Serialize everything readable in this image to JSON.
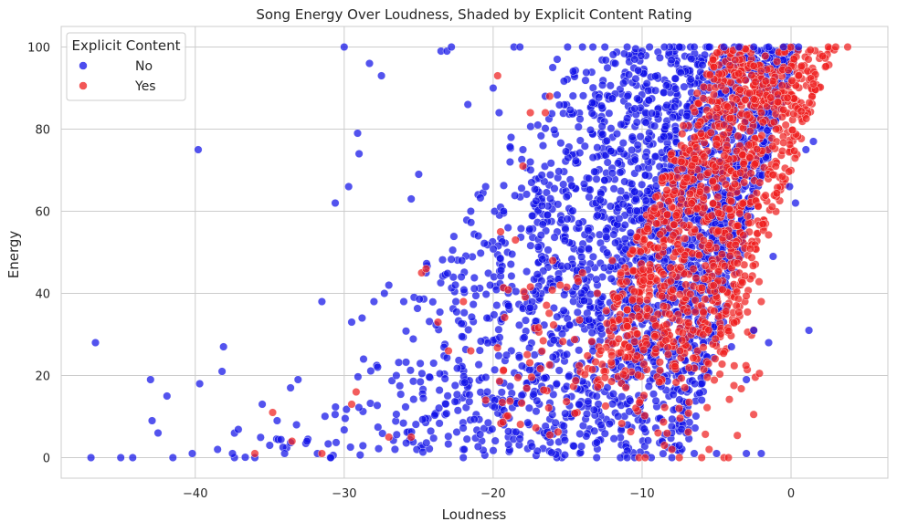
{
  "chart_data": {
    "type": "scatter",
    "title": "Song Energy Over Loudness, Shaded by Explicit Content Rating",
    "xlabel": "Loudness",
    "ylabel": "Energy",
    "xlim": [
      -49,
      6.5
    ],
    "ylim": [
      -5,
      105
    ],
    "xticks": [
      -40,
      -30,
      -20,
      -10,
      0
    ],
    "xtick_labels": [
      "−40",
      "−30",
      "−20",
      "−10",
      "0"
    ],
    "yticks": [
      0,
      20,
      40,
      60,
      80,
      100
    ],
    "ytick_labels": [
      "0",
      "20",
      "40",
      "60",
      "80",
      "100"
    ],
    "grid": true,
    "legend": {
      "title": "Explicit Content",
      "placement": "top-left",
      "entries": [
        {
          "label": "No",
          "color": "#1010e8"
        },
        {
          "label": "Yes",
          "color": "#ee1e1e"
        }
      ]
    },
    "series": [
      {
        "name": "No",
        "color": "#1010e8",
        "points": [
          [
            -47,
            0
          ],
          [
            -46.7,
            28
          ],
          [
            -45,
            0
          ],
          [
            -44.2,
            0
          ],
          [
            -43,
            19
          ],
          [
            -42.9,
            9
          ],
          [
            -42.5,
            6
          ],
          [
            -41.9,
            15
          ],
          [
            -41.5,
            0
          ],
          [
            -40.2,
            1
          ],
          [
            -39.8,
            75
          ],
          [
            -39.7,
            18
          ],
          [
            -38.5,
            2
          ],
          [
            -38.2,
            21
          ],
          [
            -38.1,
            27
          ],
          [
            -37.5,
            1
          ],
          [
            -36,
            0
          ],
          [
            -35.5,
            13
          ],
          [
            -35,
            3
          ],
          [
            -34.5,
            9
          ],
          [
            -34,
            1
          ],
          [
            -33.6,
            17
          ],
          [
            -33.2,
            8
          ],
          [
            -33.1,
            19
          ],
          [
            -32.5,
            4
          ],
          [
            -31.8,
            1
          ],
          [
            -31.5,
            38
          ],
          [
            -30.9,
            0
          ],
          [
            -30.6,
            62
          ],
          [
            -30,
            100
          ],
          [
            -29.7,
            66
          ],
          [
            -29.5,
            33
          ],
          [
            -29.1,
            79
          ],
          [
            -29,
            74
          ],
          [
            -28.8,
            34
          ],
          [
            -28.7,
            24
          ],
          [
            -28.3,
            96
          ],
          [
            -28,
            38
          ],
          [
            -27.5,
            93
          ],
          [
            -27.3,
            40
          ],
          [
            -27,
            42
          ],
          [
            -26.5,
            20
          ],
          [
            -26,
            38
          ],
          [
            -25.5,
            63
          ],
          [
            -25,
            69
          ],
          [
            -24.5,
            45
          ],
          [
            -24,
            23
          ],
          [
            -23.5,
            99
          ],
          [
            -23.1,
            99
          ],
          [
            -22.8,
            100
          ],
          [
            -22.5,
            38
          ],
          [
            -22.1,
            48
          ],
          [
            -21.7,
            86
          ],
          [
            -21.5,
            60
          ],
          [
            -21,
            54
          ],
          [
            -20.5,
            66
          ],
          [
            -20.2,
            42
          ],
          [
            -20,
            90
          ],
          [
            -19.6,
            84
          ],
          [
            -19.5,
            61
          ],
          [
            -19.3,
            60
          ],
          [
            -19,
            56
          ],
          [
            -18.8,
            78
          ],
          [
            -18.6,
            100
          ],
          [
            -18.2,
            100
          ],
          [
            -18,
            75
          ],
          [
            -17.5,
            72
          ],
          [
            -17,
            81
          ],
          [
            -16.5,
            88
          ],
          [
            -16,
            95
          ],
          [
            -15.7,
            97
          ],
          [
            -15,
            100
          ],
          [
            -14,
            100
          ],
          [
            -13.3,
            100
          ],
          [
            -12.5,
            100
          ],
          [
            -11.8,
            96
          ],
          [
            -11,
            100
          ],
          [
            -10.5,
            97
          ],
          [
            -9.5,
            100
          ],
          [
            -8.5,
            100
          ],
          [
            -7.5,
            100
          ],
          [
            -6.5,
            100
          ],
          [
            -5.5,
            100
          ],
          [
            -4.5,
            100
          ],
          [
            -3.5,
            100
          ],
          [
            -2.5,
            100
          ],
          [
            -1.5,
            100
          ],
          [
            -0.5,
            100
          ],
          [
            0.5,
            100
          ],
          [
            1,
            75
          ],
          [
            1.2,
            31
          ],
          [
            1.5,
            77
          ],
          [
            -0.1,
            66
          ],
          [
            0.3,
            62
          ],
          [
            -1.2,
            49
          ],
          [
            -2.5,
            31
          ],
          [
            -1.5,
            28
          ],
          [
            -3,
            19
          ],
          [
            -2,
            1
          ],
          [
            -3,
            1
          ],
          [
            -5,
            1
          ],
          [
            -6.5,
            1
          ],
          [
            -8,
            0
          ],
          [
            -10.5,
            0
          ],
          [
            -11,
            0
          ],
          [
            -4,
            27
          ],
          [
            -6,
            14
          ],
          [
            -6,
            18
          ]
        ],
        "dense_region": {
          "shape": "parallelogram band",
          "lower_edge_energy_0_at_loudness": -34,
          "lower_edge_energy_0_at_loudness_right": -13,
          "top_left_at_energy_100": -14,
          "right_edge_energy_0_at_loudness": -7,
          "right_edge_energy_100_at_loudness": 0.5
        }
      },
      {
        "name": "Yes",
        "color": "#ee1e1e",
        "points": [
          [
            -36,
            1
          ],
          [
            -34.8,
            11
          ],
          [
            -33.5,
            4
          ],
          [
            -31.5,
            1
          ],
          [
            -29.5,
            13
          ],
          [
            -29.2,
            16
          ],
          [
            -27,
            5
          ],
          [
            -25.5,
            5
          ],
          [
            -24.8,
            45
          ],
          [
            -24.5,
            46
          ],
          [
            -23.7,
            33
          ],
          [
            -23,
            26
          ],
          [
            -22,
            38
          ],
          [
            -21.5,
            26
          ],
          [
            -20.5,
            14
          ],
          [
            -19.7,
            93
          ],
          [
            -19.5,
            55
          ],
          [
            -18.5,
            53
          ],
          [
            -18,
            71
          ],
          [
            -17.5,
            84
          ],
          [
            -16.5,
            84
          ],
          [
            -16.2,
            88
          ],
          [
            -16,
            48
          ],
          [
            -15.5,
            42
          ],
          [
            -14,
            45
          ],
          [
            -13,
            40
          ],
          [
            -12,
            48
          ],
          [
            -11,
            32
          ],
          [
            -10.2,
            0
          ],
          [
            -9.8,
            0
          ],
          [
            -8.5,
            3
          ],
          [
            -8,
            2
          ],
          [
            -7.5,
            0
          ],
          [
            -6,
            0
          ],
          [
            -5.5,
            2
          ],
          [
            -4.5,
            0
          ],
          [
            -4.2,
            0
          ],
          [
            -2,
            38
          ],
          [
            1.5,
            91
          ],
          [
            2.5,
            100
          ],
          [
            3,
            100
          ],
          [
            3.8,
            100
          ],
          [
            -2,
            84
          ],
          [
            -1,
            80
          ]
        ],
        "dense_region": {
          "shape": "band",
          "energy_range": [
            15,
            100
          ],
          "loudness_range": [
            -18,
            3.8
          ],
          "densest_loudness": [
            -13,
            -3
          ],
          "densest_energy": [
            35,
            95
          ]
        }
      }
    ]
  }
}
